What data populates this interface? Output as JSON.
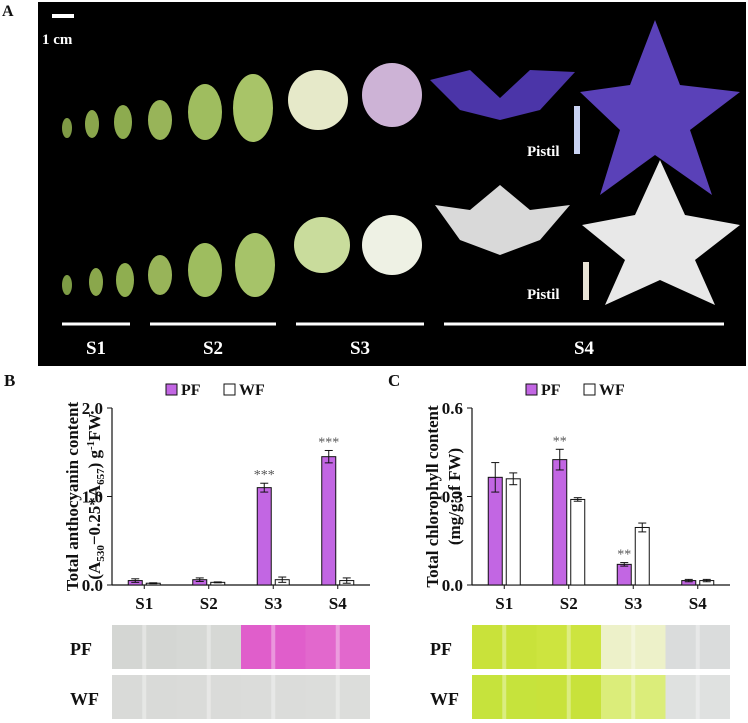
{
  "panel_a": {
    "label": "A",
    "scale": "1 cm",
    "pistil_labels": [
      "Pistil",
      "Pistil"
    ],
    "stages": [
      "S1",
      "S2",
      "S3",
      "S4"
    ]
  },
  "chart_data": [
    {
      "type": "bar",
      "panel_label": "B",
      "ylabel": [
        "Total anthocyanin content",
        [
          "(A",
          "530",
          "−0.25*A",
          "657",
          ") g",
          "-1",
          "FW"
        ]
      ],
      "categories": [
        "S1",
        "S2",
        "S3",
        "S4"
      ],
      "series": [
        {
          "name": "PF",
          "color": "#c266e3",
          "values": [
            0.05,
            0.06,
            1.1,
            1.45
          ],
          "errors": [
            0.02,
            0.02,
            0.05,
            0.07
          ],
          "significance": [
            null,
            null,
            "***",
            "***"
          ]
        },
        {
          "name": "WF",
          "color": "#ffffff",
          "values": [
            0.02,
            0.03,
            0.06,
            0.05
          ],
          "errors": [
            0.005,
            0.005,
            0.03,
            0.03
          ],
          "significance": [
            null,
            null,
            null,
            null
          ]
        }
      ],
      "ylim": [
        0,
        2
      ],
      "yticks": [
        {
          "value": 0,
          "label": "0.0"
        },
        {
          "value": 1,
          "label": "1.0"
        },
        {
          "value": 2,
          "label": "2.0"
        }
      ],
      "strip_labels": [
        "PF",
        "WF"
      ]
    },
    {
      "type": "bar",
      "panel_label": "C",
      "ylabel": [
        "Total chlorophyll content",
        [
          "(mg/g of FW)"
        ]
      ],
      "categories": [
        "S1",
        "S2",
        "S3",
        "S4"
      ],
      "series": [
        {
          "name": "PF",
          "color": "#c266e3",
          "values": [
            0.365,
            0.425,
            0.07,
            0.015
          ],
          "errors": [
            0.05,
            0.035,
            0.006,
            0.004
          ],
          "significance": [
            null,
            "**",
            "**",
            null
          ]
        },
        {
          "name": "WF",
          "color": "#ffffff",
          "values": [
            0.36,
            0.29,
            0.195,
            0.015
          ],
          "errors": [
            0.02,
            0.006,
            0.015,
            0.004
          ],
          "significance": [
            null,
            null,
            null,
            null
          ]
        }
      ],
      "ylim": [
        0,
        0.6
      ],
      "yticks": [
        {
          "value": 0,
          "label": "0.0"
        },
        0.3,
        0.6
      ],
      "strip_labels": [
        "PF",
        "WF"
      ]
    }
  ]
}
